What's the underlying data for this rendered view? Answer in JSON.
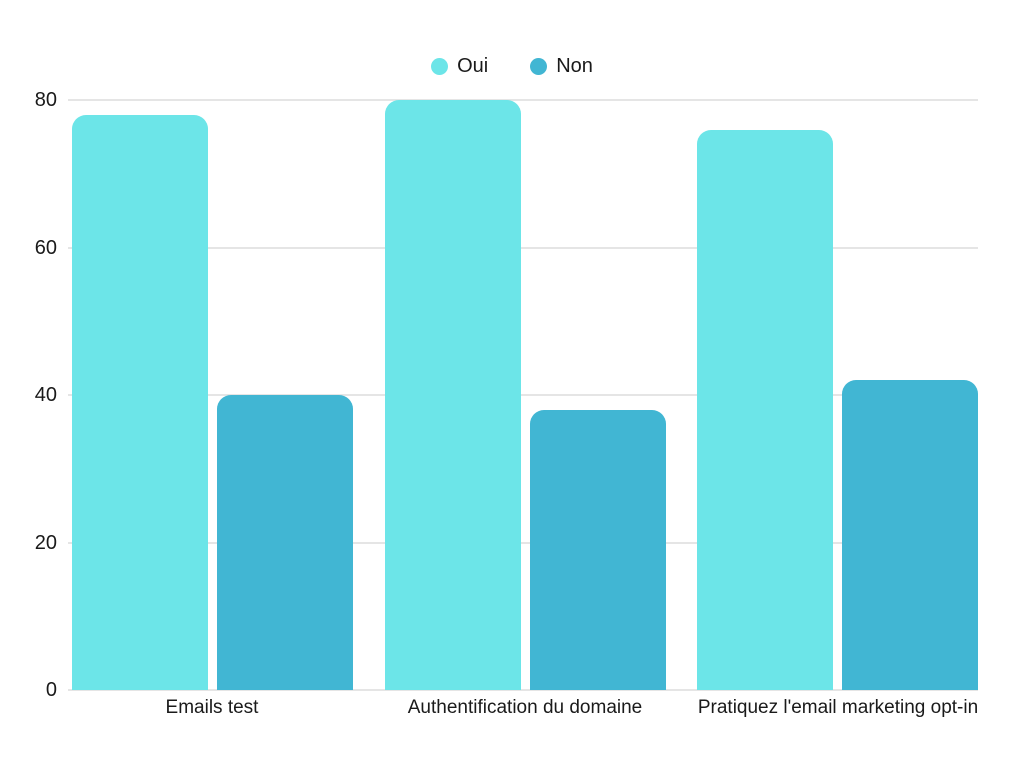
{
  "chart_data": {
    "type": "bar",
    "title": "",
    "xlabel": "",
    "ylabel": "",
    "categories": [
      "Emails test",
      "Authentification du domaine",
      "Pratiquez l'email marketing opt-in"
    ],
    "series": [
      {
        "name": "Oui",
        "color": "#6CE5E8",
        "values": [
          78,
          80,
          76
        ]
      },
      {
        "name": "Non",
        "color": "#41B6D3",
        "values": [
          40,
          38,
          42
        ]
      }
    ],
    "ylim": [
      0,
      80
    ],
    "yticks": [
      0,
      20,
      40,
      60,
      80
    ],
    "grid": true,
    "legend_position": "top-center"
  },
  "colors": {
    "background": "#FFFFFF",
    "gridline": "#E5E5E5",
    "text": "#1A1A1A"
  }
}
